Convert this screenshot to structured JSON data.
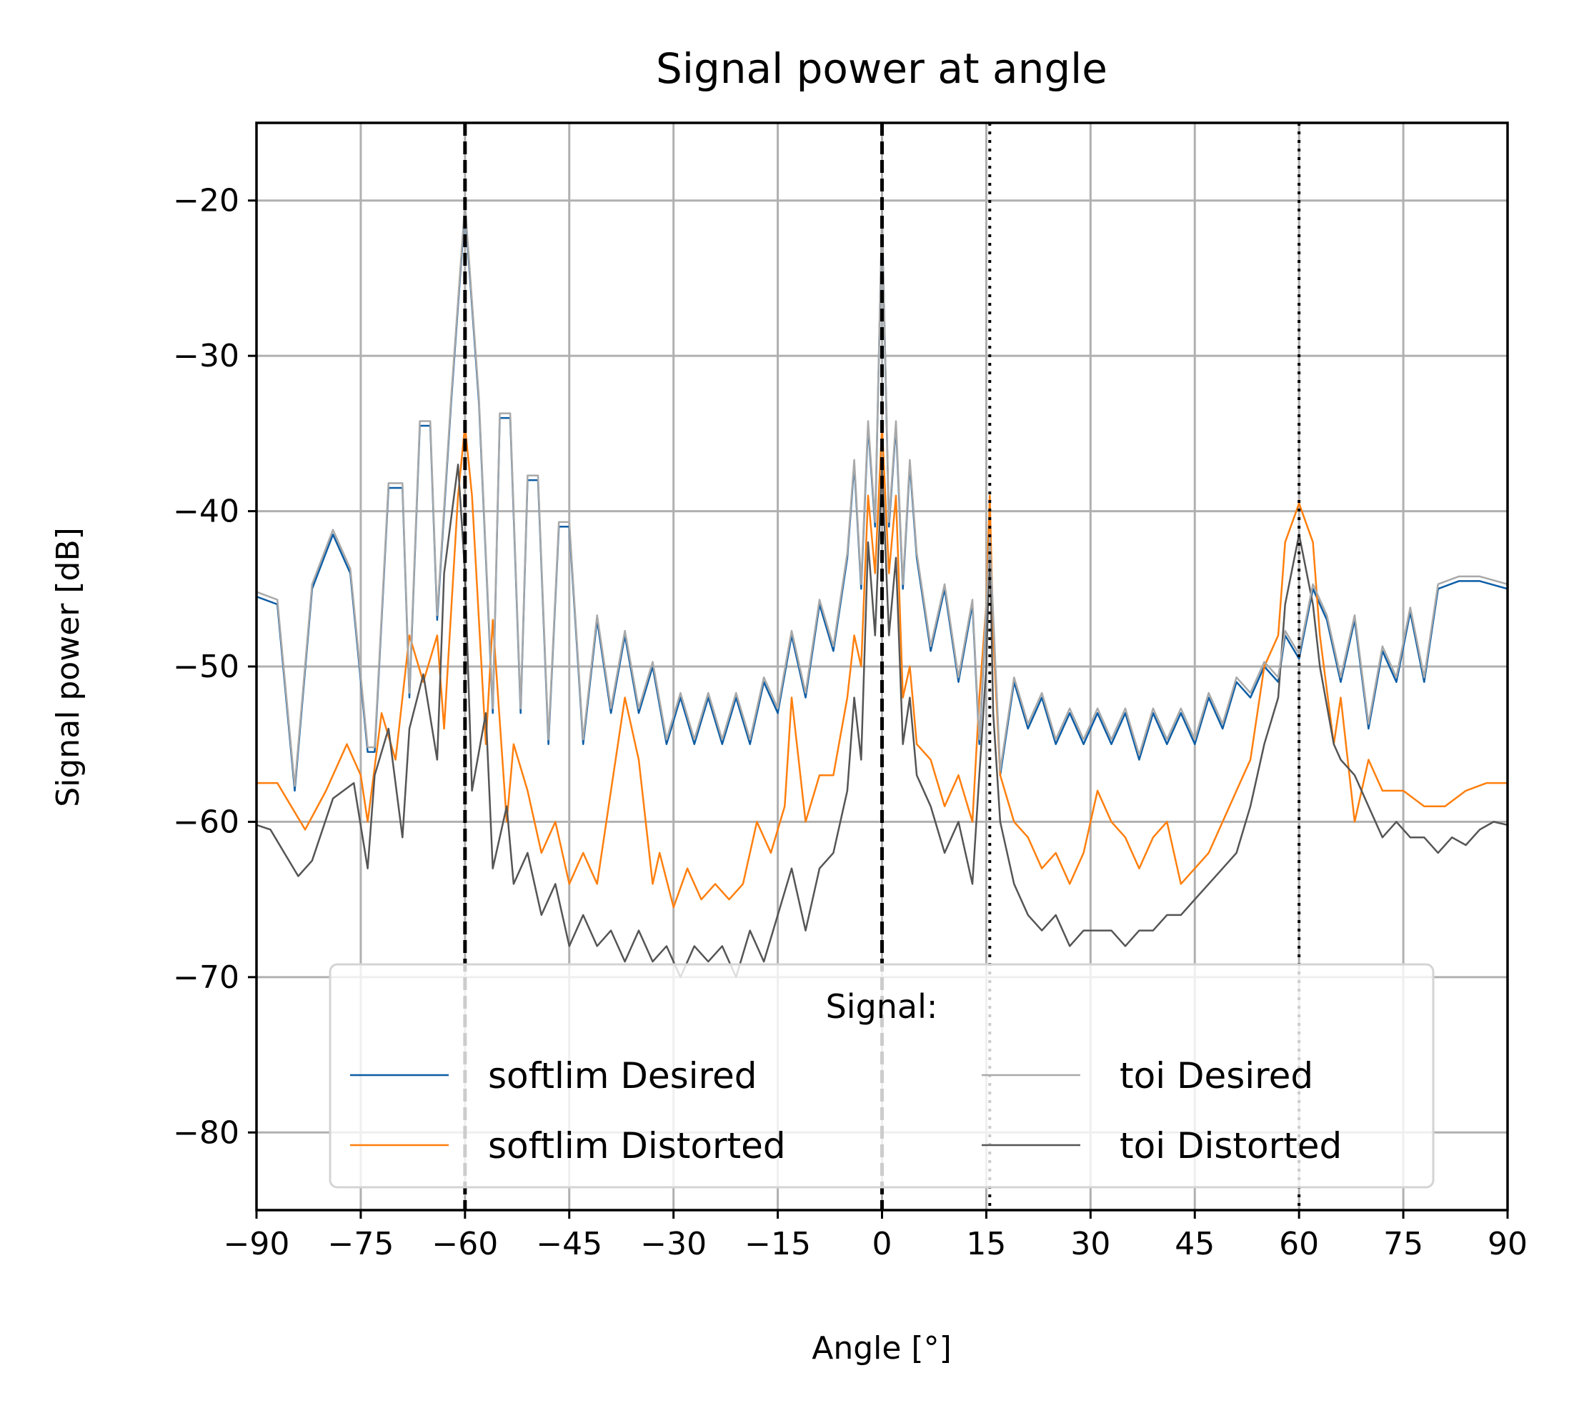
{
  "chart_data": {
    "type": "line",
    "title": "Signal power at angle",
    "xlabel": "Angle [°]",
    "ylabel": "Signal power [dB]",
    "xlim": [
      -90,
      90
    ],
    "ylim": [
      -85,
      -15
    ],
    "xticks": [
      -90,
      -75,
      -60,
      -45,
      -30,
      -15,
      0,
      15,
      30,
      45,
      60,
      75,
      90
    ],
    "xtick_labels": [
      "−90",
      "−75",
      "−60",
      "−45",
      "−30",
      "−15",
      "0",
      "15",
      "30",
      "45",
      "60",
      "75",
      "90"
    ],
    "yticks": [
      -80,
      -70,
      -60,
      -50,
      -40,
      -30,
      -20
    ],
    "ytick_labels": [
      "−80",
      "−70",
      "−60",
      "−50",
      "−40",
      "−30",
      "−20"
    ],
    "grid": true,
    "legend": {
      "title": "Signal:",
      "placement": "lower center",
      "columns": 2
    },
    "vlines": [
      {
        "x": -60,
        "style": "dashed",
        "color": "#000000"
      },
      {
        "x": 0,
        "style": "dashed",
        "color": "#000000"
      },
      {
        "x": 15.5,
        "style": "dotted",
        "color": "#000000"
      },
      {
        "x": 60,
        "style": "dotted",
        "color": "#000000"
      }
    ],
    "series": [
      {
        "name": "softlim Desired",
        "color": "#0c5da5",
        "x": [
          -90,
          -87,
          -84.5,
          -82,
          -79,
          -76.5,
          -74,
          -73,
          -71,
          -69,
          -68,
          -66.5,
          -65,
          -64,
          -62,
          -60,
          -58,
          -56,
          -55,
          -53.5,
          -52,
          -51,
          -49.5,
          -48,
          -46.5,
          -45,
          -43,
          -41,
          -39,
          -37,
          -35,
          -33,
          -31,
          -29,
          -27,
          -25,
          -23,
          -21,
          -19,
          -17,
          -15,
          -13,
          -11,
          -9,
          -7,
          -5,
          -4,
          -3,
          -2,
          -1,
          0,
          1,
          2,
          3,
          4,
          5,
          7,
          9,
          11,
          13,
          14,
          15.5,
          17,
          19,
          21,
          23,
          25,
          27,
          29,
          31,
          33,
          35,
          37,
          39,
          41,
          43,
          45,
          47,
          49,
          51,
          53,
          55,
          57,
          58,
          60,
          62,
          64,
          66,
          68,
          70,
          72,
          74,
          76,
          78,
          80,
          83,
          86,
          90
        ],
        "y": [
          -45.5,
          -46,
          -58,
          -45,
          -41.5,
          -44,
          -55.5,
          -55.5,
          -38.5,
          -38.5,
          -52,
          -34.5,
          -34.5,
          -47,
          -33,
          -20.5,
          -33,
          -53,
          -34,
          -34,
          -53,
          -38,
          -38,
          -55,
          -41,
          -41,
          -55,
          -47,
          -53,
          -48,
          -53,
          -50,
          -55,
          -52,
          -55,
          -52,
          -55,
          -52,
          -55,
          -51,
          -53,
          -48,
          -52,
          -46,
          -49,
          -43,
          -37,
          -45,
          -34.5,
          -41,
          -21,
          -41,
          -34.5,
          -45,
          -37,
          -43,
          -49,
          -45,
          -51,
          -46,
          -55,
          -42,
          -57,
          -51,
          -54,
          -52,
          -55,
          -53,
          -55,
          -53,
          -55,
          -53,
          -56,
          -53,
          -55,
          -53,
          -55,
          -52,
          -54,
          -51,
          -52,
          -50,
          -51,
          -48,
          -49.5,
          -45,
          -47,
          -51,
          -47,
          -54,
          -49,
          -51,
          -46.5,
          -51,
          -45,
          -44.5,
          -44.5,
          -45
        ]
      },
      {
        "name": "softlim Distorted",
        "color": "#ff7f0e",
        "x": [
          -90,
          -87,
          -85,
          -83,
          -80,
          -77,
          -75,
          -74,
          -72,
          -70,
          -68,
          -66,
          -64,
          -63,
          -61,
          -60,
          -59,
          -57,
          -56,
          -54,
          -53,
          -51,
          -49,
          -47,
          -45,
          -43,
          -41,
          -39,
          -37,
          -35,
          -33,
          -32,
          -30,
          -28,
          -26,
          -24,
          -22,
          -20,
          -18,
          -16,
          -14,
          -13,
          -11,
          -9,
          -7,
          -5,
          -4,
          -3,
          -2,
          -1,
          0,
          1,
          2,
          3,
          4,
          5,
          7,
          9,
          11,
          13,
          14,
          15,
          15.5,
          16,
          17,
          19,
          21,
          23,
          25,
          27,
          29,
          31,
          33,
          35,
          37,
          39,
          41,
          43,
          45,
          47,
          49,
          51,
          53,
          55,
          57,
          58,
          60,
          62,
          63,
          65,
          66,
          68,
          70,
          72,
          75,
          78,
          81,
          84,
          87,
          90
        ],
        "y": [
          -57.5,
          -57.5,
          -59,
          -60.5,
          -58,
          -55,
          -57,
          -60,
          -53,
          -56,
          -48,
          -51,
          -48,
          -54,
          -39,
          -34.5,
          -39,
          -55,
          -47,
          -60,
          -55,
          -58,
          -62,
          -60,
          -64,
          -62,
          -64,
          -58,
          -52,
          -56,
          -64,
          -62,
          -65.5,
          -63,
          -65,
          -64,
          -65,
          -64,
          -60,
          -62,
          -59,
          -52,
          -60,
          -57,
          -57,
          -52,
          -48,
          -50,
          -39,
          -44,
          -34.5,
          -44,
          -39,
          -52,
          -50,
          -55,
          -56,
          -59,
          -57,
          -60,
          -52,
          -46,
          -39,
          -48,
          -57,
          -60,
          -61,
          -63,
          -62,
          -64,
          -62,
          -58,
          -60,
          -61,
          -63,
          -61,
          -60,
          -64,
          -63,
          -62,
          -60,
          -58,
          -56,
          -50,
          -48,
          -42,
          -39.5,
          -42,
          -48,
          -55,
          -52,
          -60,
          -56,
          -58,
          -58,
          -59,
          -59,
          -58,
          -57.5,
          -57.5
        ]
      },
      {
        "name": "toi Desired",
        "color": "#a9a9a9",
        "x": [
          -90,
          -87,
          -84.5,
          -82,
          -79,
          -76.5,
          -74,
          -73,
          -71,
          -69,
          -68,
          -66.5,
          -65,
          -64,
          -62,
          -60,
          -58,
          -56,
          -55,
          -53.5,
          -52,
          -51,
          -49.5,
          -48,
          -46.5,
          -45,
          -43,
          -41,
          -39,
          -37,
          -35,
          -33,
          -31,
          -29,
          -27,
          -25,
          -23,
          -21,
          -19,
          -17,
          -15,
          -13,
          -11,
          -9,
          -7,
          -5,
          -4,
          -3,
          -2,
          -1,
          0,
          1,
          2,
          3,
          4,
          5,
          7,
          9,
          11,
          13,
          14,
          15.5,
          17,
          19,
          21,
          23,
          25,
          27,
          29,
          31,
          33,
          35,
          37,
          39,
          41,
          43,
          45,
          47,
          49,
          51,
          53,
          55,
          57,
          58,
          60,
          62,
          64,
          66,
          68,
          70,
          72,
          74,
          76,
          78,
          80,
          83,
          86,
          90
        ],
        "y": [
          -45.2,
          -45.7,
          -57.7,
          -44.7,
          -41.2,
          -43.7,
          -55.2,
          -55.2,
          -38.2,
          -38.2,
          -51.7,
          -34.2,
          -34.2,
          -46.7,
          -32.7,
          -20.2,
          -32.7,
          -52.7,
          -33.7,
          -33.7,
          -52.7,
          -37.7,
          -37.7,
          -54.7,
          -40.7,
          -40.7,
          -54.7,
          -46.7,
          -52.7,
          -47.7,
          -52.7,
          -49.7,
          -54.7,
          -51.7,
          -54.7,
          -51.7,
          -54.7,
          -51.7,
          -54.7,
          -50.7,
          -52.7,
          -47.7,
          -51.7,
          -45.7,
          -48.7,
          -42.7,
          -36.7,
          -44.7,
          -34.2,
          -40.7,
          -20.7,
          -40.7,
          -34.2,
          -44.7,
          -36.7,
          -42.7,
          -48.7,
          -44.7,
          -50.7,
          -45.7,
          -54.7,
          -41.7,
          -56.7,
          -50.7,
          -53.7,
          -51.7,
          -54.7,
          -52.7,
          -54.7,
          -52.7,
          -54.7,
          -52.7,
          -55.7,
          -52.7,
          -54.7,
          -52.7,
          -54.7,
          -51.7,
          -53.7,
          -50.7,
          -51.7,
          -49.7,
          -50.7,
          -47.7,
          -49.2,
          -44.7,
          -46.7,
          -50.7,
          -46.7,
          -53.7,
          -48.7,
          -50.7,
          -46.2,
          -50.7,
          -44.7,
          -44.2,
          -44.2,
          -44.7
        ]
      },
      {
        "name": "toi Distorted",
        "color": "#555555",
        "x": [
          -90,
          -88,
          -86,
          -84,
          -82,
          -79,
          -76,
          -74,
          -73,
          -71,
          -69,
          -68,
          -66,
          -64,
          -63,
          -61,
          -60,
          -59,
          -57,
          -56,
          -54,
          -53,
          -51,
          -49,
          -47,
          -45,
          -43,
          -41,
          -39,
          -37,
          -35,
          -33,
          -31,
          -29,
          -27,
          -25,
          -23,
          -21,
          -19,
          -17,
          -15,
          -13,
          -11,
          -9,
          -7,
          -5,
          -4,
          -3,
          -2,
          -1,
          0,
          1,
          2,
          3,
          4,
          5,
          7,
          9,
          11,
          13,
          14,
          15,
          15.5,
          16,
          17,
          19,
          21,
          23,
          25,
          27,
          29,
          31,
          33,
          35,
          37,
          39,
          41,
          43,
          45,
          47,
          49,
          51,
          53,
          55,
          57,
          58,
          60,
          62,
          63,
          65,
          66,
          68,
          70,
          72,
          74,
          76,
          78,
          80,
          82,
          84,
          86,
          88,
          90
        ],
        "y": [
          -60.2,
          -60.5,
          -62,
          -63.5,
          -62.5,
          -58.5,
          -57.5,
          -63,
          -57,
          -54,
          -61,
          -54,
          -50.5,
          -56,
          -44,
          -37,
          -44,
          -58,
          -53,
          -63,
          -59,
          -64,
          -62,
          -66,
          -64,
          -68,
          -66,
          -68,
          -67,
          -69,
          -67,
          -69,
          -68,
          -70,
          -68,
          -69,
          -68,
          -70,
          -67,
          -69,
          -66,
          -63,
          -67,
          -63,
          -62,
          -58,
          -52,
          -56,
          -42,
          -48,
          -37,
          -48,
          -43,
          -55,
          -52,
          -57,
          -59,
          -62,
          -60,
          -64,
          -57,
          -50,
          -42,
          -53,
          -60,
          -64,
          -66,
          -67,
          -66,
          -68,
          -67,
          -67,
          -67,
          -68,
          -67,
          -67,
          -66,
          -66,
          -65,
          -64,
          -63,
          -62,
          -59,
          -55,
          -52,
          -46,
          -41.5,
          -46,
          -50,
          -55,
          -56,
          -57,
          -59,
          -61,
          -60,
          -61,
          -61,
          -62,
          -61,
          -61.5,
          -60.5,
          -60,
          -60.2
        ]
      }
    ]
  }
}
